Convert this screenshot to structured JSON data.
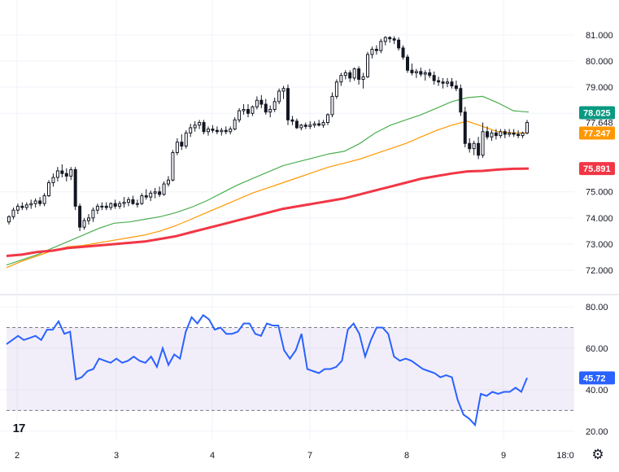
{
  "chart_data": [
    {
      "type": "candlestick",
      "pane": "price",
      "xlabels": [
        "2",
        "3",
        "4",
        "7",
        "8",
        "9",
        "18:0"
      ],
      "ylim": [
        71.6,
        81.4
      ],
      "yticks": [
        "81.000",
        "80.000",
        "79.000",
        "78.000",
        "77.648",
        "75.000",
        "74.000",
        "73.000",
        "72.000"
      ],
      "ytick_values": [
        81,
        80,
        79,
        78,
        77.648,
        75,
        74,
        73,
        72
      ],
      "grid": true,
      "candles": [
        [
          73.85,
          74.1,
          73.75,
          74.05
        ],
        [
          74.05,
          74.4,
          73.95,
          74.3
        ],
        [
          74.3,
          74.55,
          74.15,
          74.45
        ],
        [
          74.45,
          74.6,
          74.3,
          74.4
        ],
        [
          74.4,
          74.6,
          74.3,
          74.5
        ],
        [
          74.5,
          74.7,
          74.35,
          74.55
        ],
        [
          74.55,
          74.75,
          74.4,
          74.65
        ],
        [
          74.65,
          74.8,
          74.45,
          74.55
        ],
        [
          74.55,
          74.95,
          74.45,
          74.85
        ],
        [
          74.85,
          75.45,
          74.8,
          75.35
        ],
        [
          75.35,
          75.7,
          75.2,
          75.55
        ],
        [
          75.55,
          75.95,
          75.4,
          75.8
        ],
        [
          75.8,
          76.05,
          75.55,
          75.7
        ],
        [
          75.7,
          75.9,
          75.4,
          75.6
        ],
        [
          75.6,
          75.95,
          75.45,
          75.85
        ],
        [
          75.85,
          75.95,
          74.3,
          74.45
        ],
        [
          74.45,
          74.55,
          73.5,
          73.65
        ],
        [
          73.65,
          74.0,
          73.55,
          73.9
        ],
        [
          73.9,
          74.15,
          73.75,
          74.0
        ],
        [
          74.0,
          74.4,
          73.85,
          74.3
        ],
        [
          74.3,
          74.55,
          74.15,
          74.45
        ],
        [
          74.45,
          74.6,
          74.3,
          74.45
        ],
        [
          74.45,
          74.6,
          74.3,
          74.4
        ],
        [
          74.4,
          74.6,
          74.3,
          74.55
        ],
        [
          74.55,
          74.7,
          74.35,
          74.45
        ],
        [
          74.45,
          74.65,
          74.35,
          74.55
        ],
        [
          74.55,
          74.8,
          74.4,
          74.6
        ],
        [
          74.6,
          74.8,
          74.45,
          74.7
        ],
        [
          74.7,
          74.85,
          74.5,
          74.55
        ],
        [
          74.55,
          74.7,
          74.4,
          74.55
        ],
        [
          74.55,
          74.95,
          74.5,
          74.85
        ],
        [
          74.85,
          75.1,
          74.7,
          74.8
        ],
        [
          74.8,
          75.05,
          74.65,
          74.95
        ],
        [
          74.95,
          75.15,
          74.75,
          75.0
        ],
        [
          75.0,
          75.2,
          74.8,
          74.9
        ],
        [
          74.9,
          75.4,
          74.85,
          75.3
        ],
        [
          75.3,
          75.6,
          75.2,
          75.45
        ],
        [
          75.45,
          76.6,
          75.4,
          76.5
        ],
        [
          76.5,
          77.05,
          76.4,
          76.9
        ],
        [
          76.9,
          77.2,
          76.6,
          76.75
        ],
        [
          76.75,
          77.35,
          76.65,
          77.25
        ],
        [
          77.25,
          77.6,
          77.1,
          77.45
        ],
        [
          77.45,
          77.7,
          77.3,
          77.55
        ],
        [
          77.55,
          77.75,
          77.4,
          77.65
        ],
        [
          77.65,
          77.75,
          77.2,
          77.3
        ],
        [
          77.3,
          77.5,
          77.15,
          77.4
        ],
        [
          77.4,
          77.55,
          77.25,
          77.35
        ],
        [
          77.35,
          77.5,
          77.2,
          77.3
        ],
        [
          77.3,
          77.45,
          77.15,
          77.35
        ],
        [
          77.35,
          77.5,
          77.2,
          77.3
        ],
        [
          77.3,
          77.5,
          77.2,
          77.4
        ],
        [
          77.4,
          77.85,
          77.35,
          77.75
        ],
        [
          77.75,
          78.2,
          77.65,
          78.1
        ],
        [
          78.1,
          78.35,
          77.95,
          78.15
        ],
        [
          78.15,
          78.35,
          77.85,
          78.0
        ],
        [
          78.0,
          78.3,
          77.9,
          78.25
        ],
        [
          78.25,
          78.65,
          78.15,
          78.5
        ],
        [
          78.5,
          78.7,
          78.2,
          78.35
        ],
        [
          78.35,
          78.55,
          77.95,
          78.05
        ],
        [
          78.05,
          78.3,
          77.85,
          78.15
        ],
        [
          78.15,
          78.6,
          78.05,
          78.45
        ],
        [
          78.45,
          78.95,
          78.35,
          78.85
        ],
        [
          78.85,
          79.05,
          78.55,
          78.95
        ],
        [
          78.95,
          79.1,
          77.55,
          77.75
        ],
        [
          77.75,
          77.9,
          77.55,
          77.7
        ],
        [
          77.7,
          77.8,
          77.4,
          77.45
        ],
        [
          77.45,
          77.6,
          77.35,
          77.55
        ],
        [
          77.55,
          77.65,
          77.4,
          77.5
        ],
        [
          77.5,
          77.7,
          77.4,
          77.55
        ],
        [
          77.55,
          77.7,
          77.45,
          77.6
        ],
        [
          77.6,
          77.75,
          77.5,
          77.55
        ],
        [
          77.55,
          77.75,
          77.45,
          77.65
        ],
        [
          77.65,
          78.0,
          77.55,
          77.95
        ],
        [
          77.95,
          78.8,
          77.85,
          78.65
        ],
        [
          78.65,
          79.3,
          78.55,
          79.2
        ],
        [
          79.2,
          79.55,
          79.05,
          79.45
        ],
        [
          79.45,
          79.65,
          79.3,
          79.55
        ],
        [
          79.55,
          79.65,
          79.2,
          79.35
        ],
        [
          79.35,
          79.75,
          79.25,
          79.7
        ],
        [
          79.7,
          79.8,
          79.1,
          79.3
        ],
        [
          79.3,
          79.55,
          78.95,
          79.4
        ],
        [
          79.4,
          80.35,
          79.35,
          80.25
        ],
        [
          80.25,
          80.55,
          80.1,
          80.45
        ],
        [
          80.45,
          80.6,
          80.25,
          80.4
        ],
        [
          80.4,
          80.85,
          80.3,
          80.75
        ],
        [
          80.75,
          80.95,
          80.6,
          80.9
        ],
        [
          80.9,
          80.95,
          80.7,
          80.85
        ],
        [
          80.85,
          80.95,
          80.65,
          80.8
        ],
        [
          80.8,
          80.9,
          80.4,
          80.5
        ],
        [
          80.5,
          80.6,
          80.05,
          80.15
        ],
        [
          80.15,
          80.25,
          79.55,
          79.65
        ],
        [
          79.65,
          79.9,
          79.45,
          79.55
        ],
        [
          79.55,
          79.7,
          79.35,
          79.6
        ],
        [
          79.6,
          79.75,
          79.4,
          79.5
        ],
        [
          79.5,
          79.65,
          79.25,
          79.55
        ],
        [
          79.55,
          79.7,
          79.35,
          79.45
        ],
        [
          79.45,
          79.6,
          79.1,
          79.25
        ],
        [
          79.25,
          79.4,
          79.05,
          79.2
        ],
        [
          79.2,
          79.35,
          78.95,
          79.15
        ],
        [
          79.15,
          79.35,
          79.0,
          79.2
        ],
        [
          79.2,
          79.35,
          78.95,
          79.05
        ],
        [
          79.05,
          79.25,
          78.85,
          78.95
        ],
        [
          78.95,
          79.1,
          77.9,
          78.05
        ],
        [
          78.05,
          78.25,
          76.7,
          76.85
        ],
        [
          76.85,
          77.05,
          76.5,
          76.65
        ],
        [
          76.65,
          76.95,
          76.4,
          76.85
        ],
        [
          76.85,
          77.1,
          76.25,
          76.4
        ],
        [
          76.4,
          77.65,
          76.3,
          77.3
        ],
        [
          77.3,
          77.5,
          77.0,
          77.1
        ],
        [
          77.1,
          77.35,
          76.95,
          77.25
        ],
        [
          77.25,
          77.4,
          77.0,
          77.15
        ],
        [
          77.15,
          77.4,
          77.05,
          77.3
        ],
        [
          77.3,
          77.4,
          77.05,
          77.2
        ],
        [
          77.2,
          77.4,
          77.1,
          77.25
        ],
        [
          77.25,
          77.4,
          77.1,
          77.2
        ],
        [
          77.2,
          77.35,
          77.05,
          77.15
        ],
        [
          77.15,
          77.3,
          77.05,
          77.25
        ],
        [
          77.25,
          77.75,
          77.2,
          77.65
        ]
      ],
      "series": [
        {
          "values": [
            72.2,
            72.4,
            72.6,
            72.85,
            73.1,
            73.35,
            73.6,
            73.8,
            73.85,
            73.95,
            74.05,
            74.2,
            74.4,
            74.65,
            74.95,
            75.25,
            75.5,
            75.75,
            76.0,
            76.15,
            76.3,
            76.45,
            76.55,
            76.85,
            77.25,
            77.55,
            77.75,
            77.95,
            78.2,
            78.45,
            78.6,
            78.65,
            78.4,
            78.1,
            78.05
          ],
          "color": "#4caf50"
        },
        {
          "values": [
            72.1,
            72.35,
            72.55,
            72.75,
            72.9,
            72.95,
            73.05,
            73.15,
            73.25,
            73.35,
            73.5,
            73.7,
            73.95,
            74.2,
            74.45,
            74.7,
            74.95,
            75.15,
            75.35,
            75.55,
            75.75,
            75.95,
            76.1,
            76.25,
            76.45,
            76.65,
            76.85,
            77.1,
            77.35,
            77.55,
            77.7,
            77.5,
            77.3,
            77.25,
            77.25
          ],
          "color": "#ff9800"
        },
        {
          "values": [
            72.55,
            72.6,
            72.7,
            72.75,
            72.85,
            72.9,
            72.95,
            73.0,
            73.05,
            73.1,
            73.2,
            73.3,
            73.45,
            73.6,
            73.75,
            73.9,
            74.05,
            74.2,
            74.35,
            74.45,
            74.55,
            74.65,
            74.75,
            74.9,
            75.05,
            75.2,
            75.35,
            75.5,
            75.6,
            75.7,
            75.78,
            75.8,
            75.85,
            75.88,
            75.89
          ],
          "color": "#f23645"
        }
      ],
      "badges": [
        {
          "label": "78.025",
          "value": 78.025,
          "color": "#089981"
        },
        {
          "label": "77.247",
          "value": 77.247,
          "color": "#ff9800"
        },
        {
          "label": "75.891",
          "value": 75.891,
          "color": "#f23645"
        }
      ]
    },
    {
      "type": "line",
      "pane": "rsi",
      "ylim": [
        16,
        82
      ],
      "yticks": [
        "80.00",
        "60.00",
        "40.00",
        "20.00"
      ],
      "ytick_values": [
        80,
        60,
        40,
        20
      ],
      "band": [
        30,
        70
      ],
      "series": [
        {
          "values": [
            62,
            64,
            66,
            64,
            65,
            66,
            64,
            69,
            69,
            73,
            67,
            68,
            45,
            46,
            49,
            50,
            55,
            54,
            53,
            55,
            53,
            54,
            56,
            54,
            53,
            56,
            51,
            60,
            52,
            57,
            55,
            68,
            75,
            72,
            76,
            74,
            69,
            70,
            67,
            67,
            68,
            72,
            72,
            67,
            66,
            72,
            71,
            71,
            59,
            55,
            59,
            67,
            50,
            49,
            48,
            50,
            50,
            51,
            54,
            69,
            72,
            67,
            56,
            64,
            70,
            70,
            67,
            56,
            54,
            55,
            54,
            52,
            50,
            49,
            48,
            46,
            47,
            46,
            35,
            28,
            26,
            23,
            38,
            37,
            39,
            38,
            39,
            39,
            41,
            39,
            45.72
          ],
          "color": "#2962ff"
        }
      ],
      "badges": [
        {
          "label": "45.72",
          "value": 45.72,
          "color": "#2962ff"
        }
      ]
    }
  ],
  "ui": {
    "watermark": "17",
    "settings_icon": "gear-icon"
  }
}
